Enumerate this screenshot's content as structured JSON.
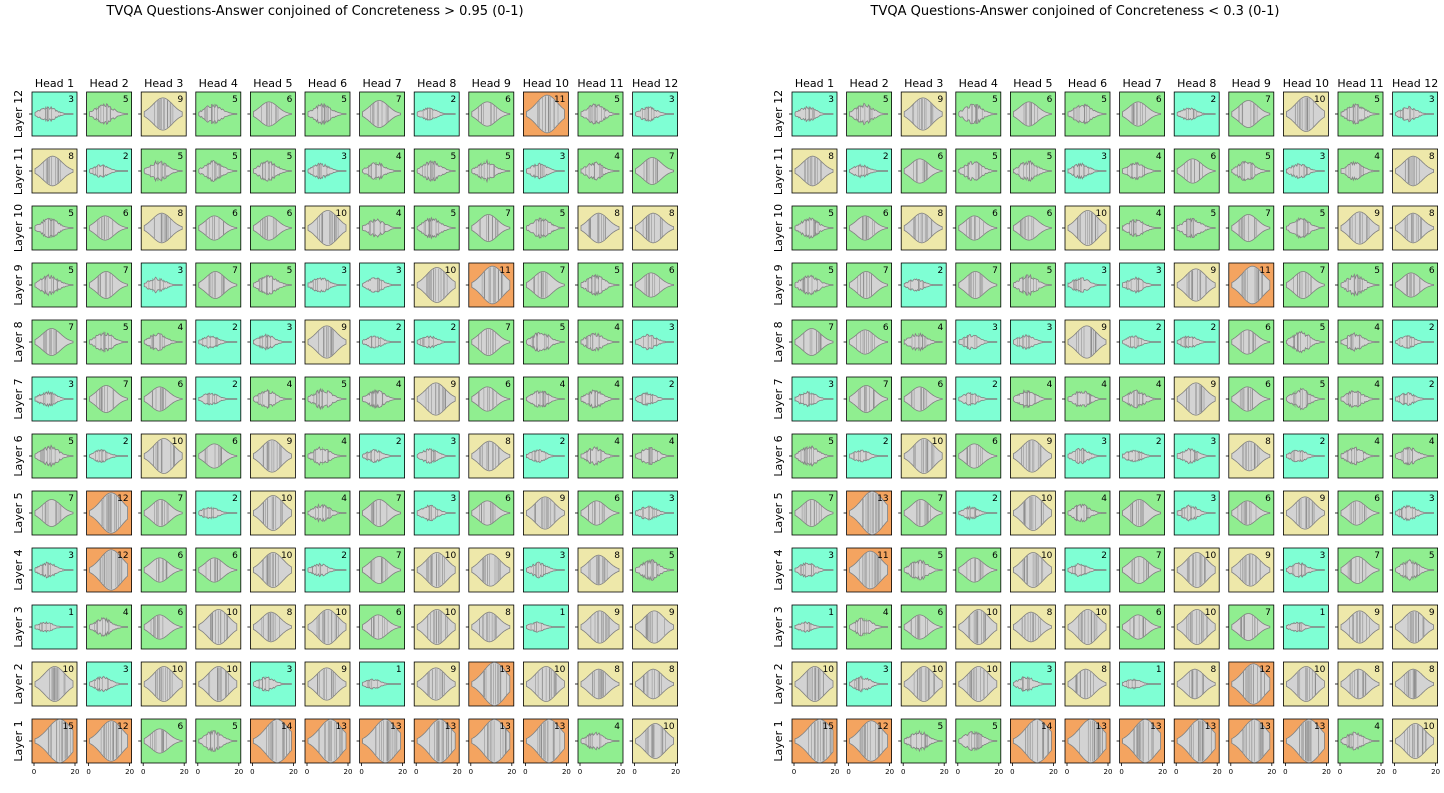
{
  "chart_data": [
    {
      "type": "violin-grid",
      "title": "TVQA Questions-Answer conjoined of Concreteness > 0.95 (0-1)",
      "heads": [
        "Head 1",
        "Head 2",
        "Head 3",
        "Head 4",
        "Head 5",
        "Head 6",
        "Head 7",
        "Head 8",
        "Head 9",
        "Head 10",
        "Head 11",
        "Head 12"
      ],
      "layers": [
        "Layer 12",
        "Layer 11",
        "Layer 10",
        "Layer 9",
        "Layer 8",
        "Layer 7",
        "Layer 6",
        "Layer 5",
        "Layer 4",
        "Layer 3",
        "Layer 2",
        "Layer 1"
      ],
      "xticks": [
        "0",
        "20"
      ],
      "xlim": [
        0,
        20
      ],
      "values": [
        [
          3,
          5,
          9,
          5,
          6,
          5,
          7,
          2,
          6,
          11,
          5,
          3
        ],
        [
          8,
          2,
          5,
          5,
          5,
          3,
          4,
          5,
          5,
          3,
          4,
          7
        ],
        [
          5,
          6,
          8,
          6,
          6,
          10,
          4,
          5,
          7,
          5,
          8,
          8
        ],
        [
          5,
          7,
          3,
          7,
          5,
          3,
          3,
          10,
          11,
          7,
          5,
          6
        ],
        [
          7,
          5,
          4,
          2,
          3,
          9,
          2,
          2,
          7,
          5,
          4,
          3
        ],
        [
          3,
          7,
          6,
          2,
          4,
          5,
          4,
          9,
          6,
          4,
          4,
          2
        ],
        [
          5,
          2,
          10,
          6,
          9,
          4,
          2,
          3,
          8,
          2,
          4,
          4
        ],
        [
          7,
          12,
          7,
          2,
          10,
          4,
          7,
          3,
          6,
          9,
          6,
          3
        ],
        [
          3,
          12,
          6,
          6,
          10,
          2,
          7,
          10,
          9,
          3,
          8,
          5
        ],
        [
          1,
          4,
          6,
          10,
          8,
          10,
          6,
          10,
          8,
          1,
          9,
          9
        ],
        [
          10,
          3,
          10,
          10,
          3,
          9,
          1,
          9,
          13,
          10,
          8,
          8
        ],
        [
          15,
          12,
          6,
          5,
          14,
          13,
          13,
          13,
          13,
          13,
          4,
          10
        ]
      ]
    },
    {
      "type": "violin-grid",
      "title": "TVQA Questions-Answer conjoined of Concreteness < 0.3 (0-1)",
      "heads": [
        "Head 1",
        "Head 2",
        "Head 3",
        "Head 4",
        "Head 5",
        "Head 6",
        "Head 7",
        "Head 8",
        "Head 9",
        "Head 10",
        "Head 11",
        "Head 12"
      ],
      "layers": [
        "Layer 12",
        "Layer 11",
        "Layer 10",
        "Layer 9",
        "Layer 8",
        "Layer 7",
        "Layer 6",
        "Layer 5",
        "Layer 4",
        "Layer 3",
        "Layer 2",
        "Layer 1"
      ],
      "xticks": [
        "0",
        "20"
      ],
      "xlim": [
        0,
        20
      ],
      "values": [
        [
          3,
          5,
          9,
          5,
          6,
          5,
          6,
          2,
          7,
          10,
          5,
          3
        ],
        [
          8,
          2,
          6,
          5,
          5,
          3,
          4,
          6,
          5,
          3,
          4,
          8
        ],
        [
          5,
          6,
          8,
          6,
          6,
          10,
          4,
          5,
          7,
          5,
          9,
          8
        ],
        [
          5,
          7,
          2,
          7,
          5,
          3,
          3,
          9,
          11,
          7,
          5,
          6
        ],
        [
          7,
          6,
          4,
          3,
          3,
          9,
          2,
          2,
          6,
          5,
          4,
          2
        ],
        [
          3,
          7,
          6,
          2,
          4,
          4,
          4,
          9,
          6,
          5,
          4,
          2
        ],
        [
          5,
          2,
          10,
          6,
          9,
          3,
          2,
          3,
          8,
          2,
          4,
          4
        ],
        [
          7,
          13,
          7,
          2,
          10,
          4,
          7,
          3,
          6,
          9,
          6,
          3
        ],
        [
          3,
          11,
          5,
          6,
          10,
          2,
          7,
          10,
          9,
          3,
          7,
          5
        ],
        [
          1,
          4,
          6,
          10,
          8,
          10,
          6,
          10,
          7,
          1,
          9,
          9
        ],
        [
          10,
          3,
          10,
          10,
          3,
          8,
          1,
          8,
          12,
          10,
          8,
          8
        ],
        [
          15,
          12,
          5,
          5,
          14,
          13,
          13,
          13,
          13,
          13,
          4,
          10
        ]
      ]
    }
  ],
  "colors": {
    "low": "#7fffd4",
    "mid": "#90ee90",
    "high": "#eee8aa",
    "top": "#f4a460",
    "violin_fill": "#d3d3d3",
    "violin_edge": "#808080"
  }
}
